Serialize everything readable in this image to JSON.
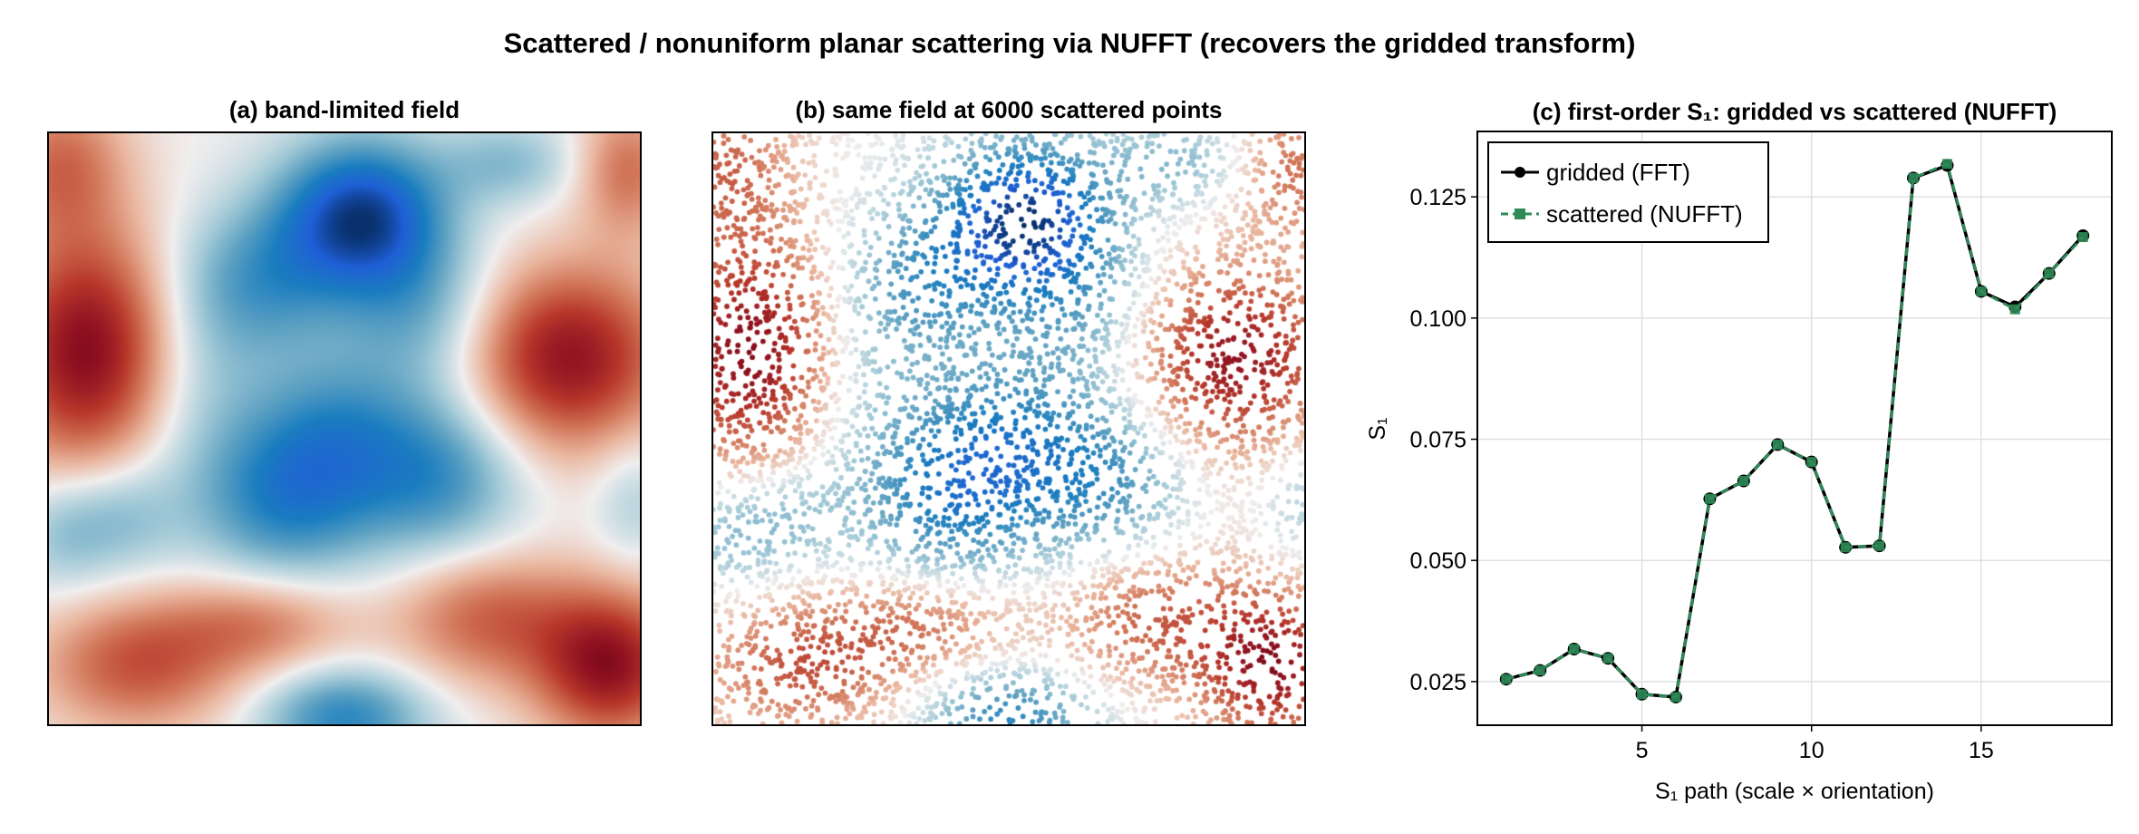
{
  "figure_title": "Scattered / nonuniform planar scattering via NUFFT (recovers the gridded transform)",
  "panels": {
    "a": {
      "title": "(a) band-limited field"
    },
    "b": {
      "title": "(b) same field at 6000 scattered points"
    },
    "c": {
      "title": "(c) first-order S₁: gridded vs scattered (NUFFT)"
    }
  },
  "colors": {
    "colormap_diverging": [
      "#08306b",
      "#1f5fd6",
      "#1a7dbf",
      "#5fa2c2",
      "#a9cdd9",
      "#f0eeee",
      "#eab7a0",
      "#d2775a",
      "#b8382b",
      "#8d0f20",
      "#3d0008"
    ],
    "gridded_line": "#000000",
    "scattered_line": "#2e8b57"
  },
  "chart_data": [
    {
      "type": "heatmap",
      "title": "(a) band-limited field",
      "colormap": "diverging blue-white-red"
    },
    {
      "type": "scatter",
      "title": "(b) same field at 6000 scattered points",
      "n_points": 6000,
      "colormap": "diverging blue-white-red"
    },
    {
      "type": "line",
      "title": "(c) first-order S₁: gridded vs scattered (NUFFT)",
      "xlabel": "S₁ path (scale × orientation)",
      "ylabel": "S₁",
      "xlim": [
        0.15,
        18.85
      ],
      "ylim": [
        0.016,
        0.1385
      ],
      "xticks": [
        5,
        10,
        15
      ],
      "yticks": [
        0.025,
        0.05,
        0.075,
        0.1,
        0.125
      ],
      "ytick_labels": [
        "0.025",
        "0.050",
        "0.075",
        "0.100",
        "0.125"
      ],
      "grid": true,
      "legend_position": "top-left",
      "x": [
        1,
        2,
        3,
        4,
        5,
        6,
        7,
        8,
        9,
        10,
        11,
        12,
        13,
        14,
        15,
        16,
        17,
        18
      ],
      "series": [
        {
          "name": "gridded (FFT)",
          "style": "solid, circle markers",
          "color": "#000000",
          "values": [
            0.0255,
            0.0273,
            0.0317,
            0.0298,
            0.0224,
            0.0218,
            0.0627,
            0.0664,
            0.0739,
            0.0703,
            0.0527,
            0.053,
            0.1289,
            0.1315,
            0.1055,
            0.1023,
            0.1092,
            0.117
          ]
        },
        {
          "name": "scattered (NUFFT)",
          "style": "dashed, square markers",
          "color": "#2e8b57",
          "values": [
            0.0255,
            0.0273,
            0.0317,
            0.0298,
            0.0224,
            0.0218,
            0.0627,
            0.0664,
            0.0739,
            0.0703,
            0.0527,
            0.053,
            0.1289,
            0.1318,
            0.1055,
            0.1018,
            0.1092,
            0.1167
          ]
        }
      ]
    }
  ]
}
